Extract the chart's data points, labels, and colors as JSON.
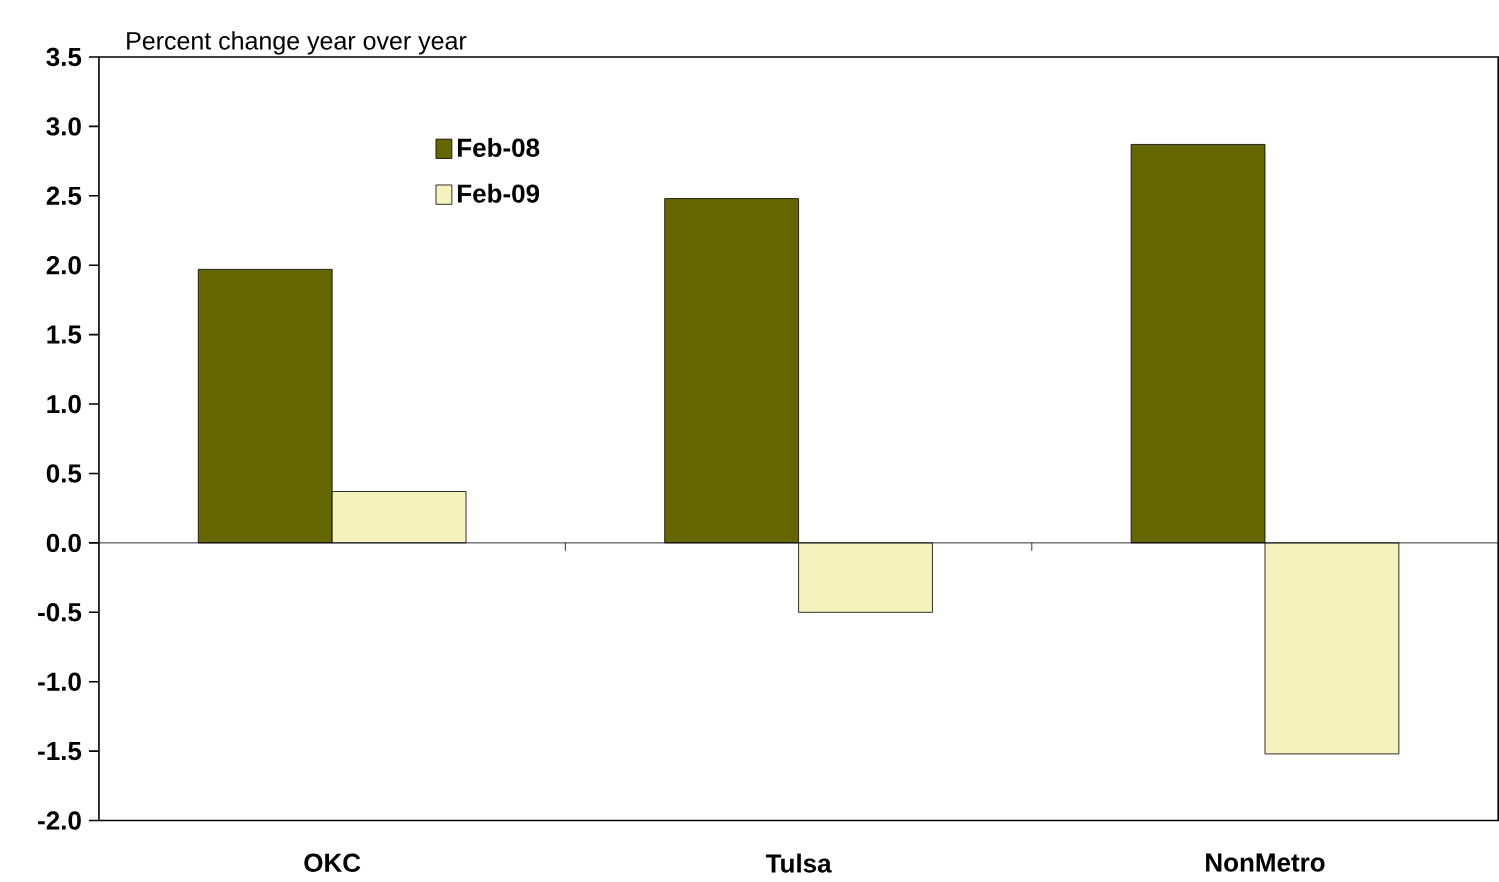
{
  "chart_data": {
    "type": "bar",
    "ylabel": "Percent change year over year",
    "categories": [
      "OKC",
      "Tulsa",
      "NonMetro"
    ],
    "series": [
      {
        "name": "Feb-08",
        "color": "#666600",
        "values": [
          1.97,
          2.48,
          2.87
        ]
      },
      {
        "name": "Feb-09",
        "color": "#f5f2be",
        "values": [
          0.37,
          -0.5,
          -1.52
        ]
      }
    ],
    "ylim": [
      -2.0,
      3.5
    ],
    "yticks": [
      {
        "value": -2.0,
        "label": "-2.0"
      },
      -1.5,
      {
        "value": -1.0,
        "label": "-1.0"
      },
      -0.5,
      {
        "value": 0,
        "label": "0.0"
      },
      0.5,
      {
        "value": 1.0,
        "label": "1.0"
      },
      1.5,
      {
        "value": 2.0,
        "label": "2.0"
      },
      2.5,
      {
        "value": 3.0,
        "label": "3.0"
      },
      3.5
    ],
    "ref_lines": [
      {
        "axis": "y",
        "value": 0,
        "color": "#000000"
      }
    ],
    "grid": false,
    "legend": "top left"
  }
}
